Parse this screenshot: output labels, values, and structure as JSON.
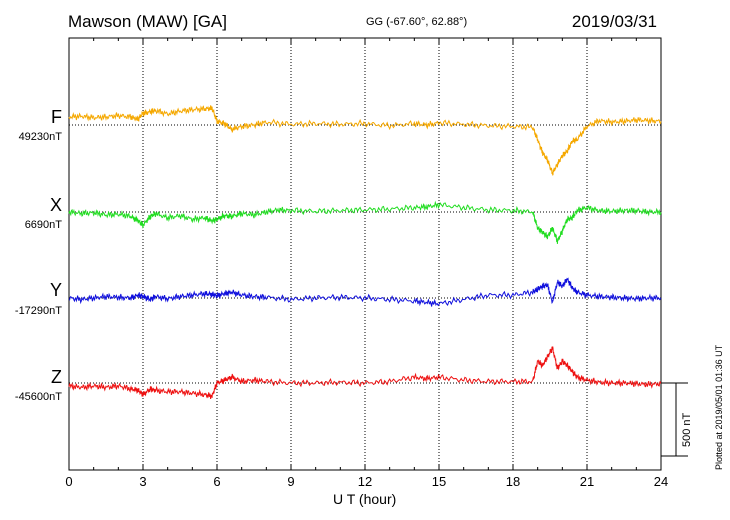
{
  "header": {
    "station": "Mawson (MAW)  [GA]",
    "coords": "GG (-67.60°,  62.88°)",
    "date": "2019/03/31"
  },
  "footer": {
    "plotted": "Plotted at 2019/05/01 01:36 UT",
    "scale": "500 nT"
  },
  "chart_data": {
    "type": "line",
    "title": "Mawson (MAW)  [GA]",
    "xlabel": "U T (hour)",
    "ylabel": "",
    "xlim": [
      0,
      24
    ],
    "x_ticks": [
      "0",
      "3",
      "6",
      "9",
      "12",
      "15",
      "18",
      "21",
      "24"
    ],
    "grid": true,
    "scale_bar_nT": 500,
    "series": [
      {
        "name": "F",
        "baseline_label": "49230nT",
        "color": "#f5a800",
        "x": [
          0,
          0.5,
          1,
          1.5,
          2,
          2.5,
          2.8,
          3,
          3.3,
          3.5,
          4,
          4.5,
          5,
          5.5,
          5.8,
          6,
          6.3,
          6.6,
          7,
          7.5,
          8,
          9,
          10,
          11,
          12,
          13,
          14,
          14.5,
          15,
          16,
          17,
          18,
          18.8,
          19.0,
          19.2,
          19.4,
          19.6,
          19.8,
          20.0,
          20.2,
          20.4,
          20.6,
          21,
          21.5,
          22,
          22.5,
          23,
          23.5,
          24
        ],
        "values": [
          49285,
          49290,
          49280,
          49285,
          49295,
          49285,
          49270,
          49310,
          49320,
          49330,
          49305,
          49325,
          49335,
          49340,
          49345,
          49255,
          49240,
          49200,
          49220,
          49230,
          49250,
          49235,
          49240,
          49235,
          49240,
          49225,
          49240,
          49230,
          49245,
          49235,
          49225,
          49220,
          49215,
          49130,
          49040,
          48990,
          48900,
          48960,
          49020,
          49050,
          49120,
          49130,
          49220,
          49260,
          49250,
          49255,
          49265,
          49260,
          49255
        ]
      },
      {
        "name": "X",
        "baseline_label": "6690nT",
        "color": "#22dd22",
        "x": [
          0,
          0.5,
          1,
          1.5,
          2,
          2.5,
          2.8,
          3,
          3.3,
          3.5,
          4,
          4.5,
          5,
          5.5,
          5.8,
          6,
          6.3,
          6.6,
          7,
          7.5,
          8,
          8.5,
          9,
          10,
          11,
          12,
          13,
          14,
          14.5,
          15,
          16,
          17,
          18,
          18.8,
          19.0,
          19.2,
          19.4,
          19.6,
          19.8,
          20.0,
          20.2,
          20.4,
          20.6,
          21,
          21.5,
          22,
          22.5,
          23,
          23.5,
          24
        ],
        "values": [
          6690,
          6680,
          6685,
          6670,
          6675,
          6660,
          6630,
          6600,
          6660,
          6680,
          6650,
          6665,
          6640,
          6650,
          6630,
          6640,
          6665,
          6660,
          6680,
          6670,
          6690,
          6705,
          6700,
          6695,
          6700,
          6705,
          6710,
          6720,
          6725,
          6740,
          6720,
          6705,
          6700,
          6690,
          6580,
          6550,
          6520,
          6580,
          6490,
          6560,
          6640,
          6650,
          6700,
          6720,
          6700,
          6695,
          6700,
          6700,
          6690,
          6690
        ]
      },
      {
        "name": "Y",
        "baseline_label": "-17290nT",
        "color": "#1010dd",
        "x": [
          0,
          0.5,
          1,
          1.5,
          2,
          2.5,
          2.8,
          3,
          3.3,
          3.5,
          4,
          4.5,
          5,
          5.5,
          5.8,
          6,
          6.3,
          6.6,
          7,
          7.5,
          8,
          9,
          10,
          11,
          12,
          13,
          14,
          14.5,
          15,
          16,
          17,
          18,
          18.8,
          19.0,
          19.2,
          19.4,
          19.6,
          19.8,
          20.0,
          20.2,
          20.4,
          20.6,
          21,
          21.5,
          22,
          22.5,
          23,
          23.5,
          24
        ],
        "values": [
          -17290,
          -17300,
          -17290,
          -17280,
          -17285,
          -17290,
          -17270,
          -17280,
          -17300,
          -17280,
          -17295,
          -17280,
          -17270,
          -17260,
          -17265,
          -17275,
          -17260,
          -17250,
          -17270,
          -17280,
          -17285,
          -17300,
          -17290,
          -17285,
          -17290,
          -17300,
          -17310,
          -17320,
          -17330,
          -17300,
          -17270,
          -17270,
          -17250,
          -17230,
          -17210,
          -17200,
          -17320,
          -17180,
          -17210,
          -17160,
          -17220,
          -17250,
          -17270,
          -17280,
          -17285,
          -17290,
          -17295,
          -17290,
          -17290
        ]
      },
      {
        "name": "Z",
        "baseline_label": "-45600nT",
        "color": "#ee1111",
        "x": [
          0,
          0.5,
          1,
          1.5,
          2,
          2.5,
          2.8,
          3,
          3.3,
          3.5,
          4,
          4.5,
          5,
          5.5,
          5.8,
          6,
          6.3,
          6.6,
          7,
          7.5,
          8,
          9,
          10,
          11,
          12,
          13,
          14,
          14.5,
          15,
          16,
          17,
          18,
          18.8,
          19.0,
          19.2,
          19.4,
          19.6,
          19.8,
          20.0,
          20.2,
          20.4,
          20.6,
          21,
          21.5,
          22,
          22.5,
          23,
          23.5,
          24
        ],
        "values": [
          -45620,
          -45630,
          -45620,
          -45630,
          -45620,
          -45640,
          -45650,
          -45680,
          -45640,
          -45650,
          -45660,
          -45660,
          -45670,
          -45680,
          -45690,
          -45600,
          -45580,
          -45560,
          -45590,
          -45580,
          -45590,
          -45600,
          -45600,
          -45595,
          -45600,
          -45590,
          -45560,
          -45570,
          -45560,
          -45580,
          -45590,
          -45590,
          -45590,
          -45450,
          -45480,
          -45420,
          -45360,
          -45500,
          -45450,
          -45480,
          -45520,
          -45560,
          -45580,
          -45595,
          -45600,
          -45600,
          -45605,
          -45610,
          -45605
        ]
      }
    ]
  }
}
